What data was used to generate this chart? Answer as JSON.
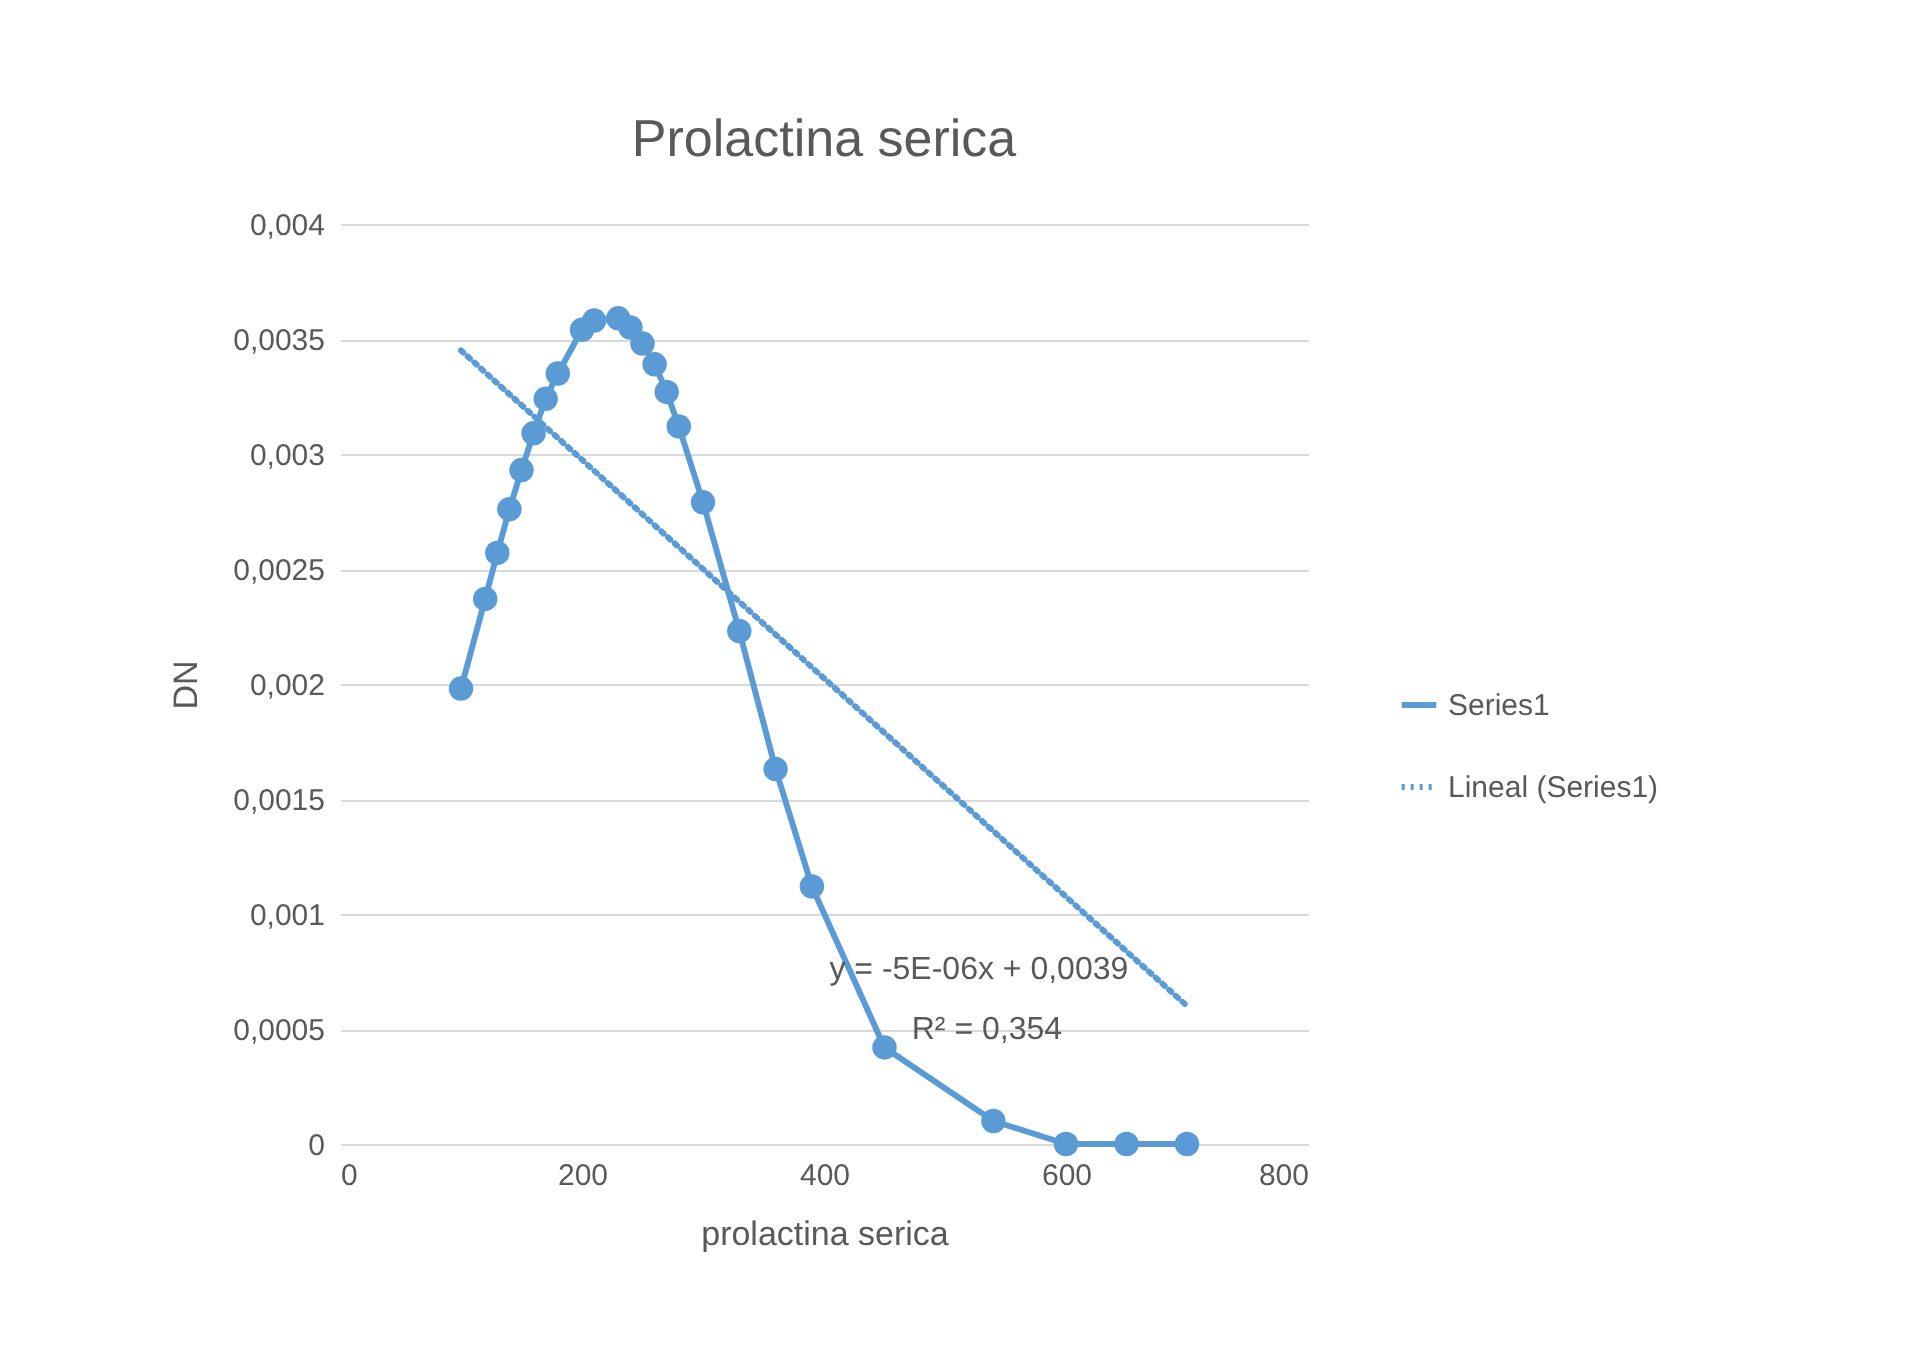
{
  "chart_data": {
    "type": "line",
    "title": "Prolactina serica",
    "xlabel": "prolactina serica",
    "ylabel": "DN",
    "xlim": [
      0,
      800
    ],
    "xticks": [
      0,
      200,
      400,
      600,
      800
    ],
    "ylim": [
      0,
      0.004
    ],
    "yticks": [
      {
        "value": 0,
        "label": "0"
      },
      {
        "value": 0.0005,
        "label": "0,0005"
      },
      {
        "value": 0.001,
        "label": "0,001"
      },
      {
        "value": 0.0015,
        "label": "0,0015"
      },
      {
        "value": 0.002,
        "label": "0,002"
      },
      {
        "value": 0.0025,
        "label": "0,0025"
      },
      {
        "value": 0.003,
        "label": "0,003"
      },
      {
        "value": 0.0035,
        "label": "0,0035"
      },
      {
        "value": 0.004,
        "label": "0,004"
      }
    ],
    "grid": "y",
    "legend": "right",
    "marker": "circle",
    "annotations": [
      "y = -5E-06x + 0,0039",
      "R² = 0,354"
    ],
    "series": [
      {
        "name": "Series1",
        "color": "#5b9bd5",
        "line_style": "solid",
        "x": [
          100,
          120,
          130,
          140,
          150,
          160,
          170,
          180,
          200,
          210,
          230,
          240,
          250,
          260,
          270,
          280,
          300,
          330,
          360,
          390,
          450,
          540,
          600,
          650,
          700
        ],
        "values": [
          0.00198,
          0.00237,
          0.00257,
          0.00276,
          0.00293,
          0.00309,
          0.00324,
          0.00335,
          0.00354,
          0.00358,
          0.00359,
          0.00355,
          0.00348,
          0.00339,
          0.00327,
          0.00312,
          0.00279,
          0.00223,
          0.00163,
          0.00112,
          0.00042,
          0.0001,
          0,
          0,
          0
        ]
      },
      {
        "name": "Lineal (Series1)",
        "type": "line",
        "color": "#5b9bd5",
        "line_style": "dotted",
        "marker": "none",
        "x": [
          100,
          700
        ],
        "values": [
          0.00345,
          0.0006
        ]
      }
    ]
  }
}
